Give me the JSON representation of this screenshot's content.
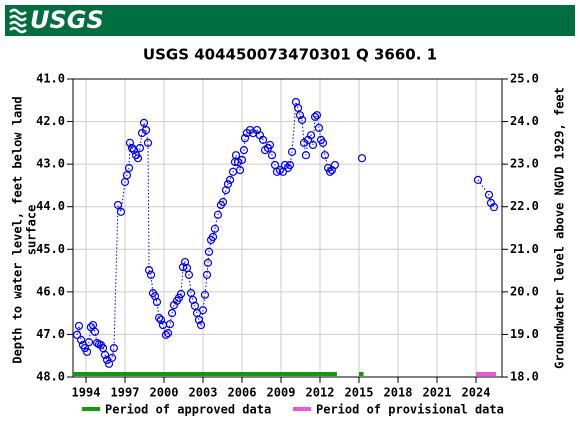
{
  "chart_data": {
    "type": "scatter",
    "logo": "USGS",
    "title": "USGS 404450073470301 Q  3660. 1",
    "ylabel": [
      "Depth to water level, feet below land",
      "surface"
    ],
    "y2label": "Groundwater level above NGVD 1929, feet",
    "xlim": [
      1993,
      2026
    ],
    "xticks": [
      1994,
      1997,
      2000,
      2003,
      2006,
      2009,
      2012,
      2015,
      2018,
      2021,
      2024
    ],
    "ylim": [
      48,
      41
    ],
    "yticks": [
      {
        "value": 41,
        "label": "41.0"
      },
      {
        "value": 42,
        "label": "42.0"
      },
      {
        "value": 43,
        "label": "43.0"
      },
      {
        "value": 44,
        "label": "44.0"
      },
      {
        "value": 45,
        "label": "45.0"
      },
      {
        "value": 46,
        "label": "46.0"
      },
      {
        "value": 47,
        "label": "47.0"
      },
      {
        "value": 48,
        "label": "48.0"
      }
    ],
    "y2lim": [
      18,
      25
    ],
    "y2ticks": [
      {
        "value": 25,
        "label": "25.0"
      },
      {
        "value": 24,
        "label": "24.0"
      },
      {
        "value": 23,
        "label": "23.0"
      },
      {
        "value": 22,
        "label": "22.0"
      },
      {
        "value": 21,
        "label": "21.0"
      },
      {
        "value": 20,
        "label": "20.0"
      },
      {
        "value": 19,
        "label": "19.0"
      },
      {
        "value": 18,
        "label": "18.0"
      }
    ],
    "grid": true,
    "series": [
      {
        "color": "#0000ff",
        "x": [
          1993.31,
          1993.46,
          1993.62,
          1993.77,
          1993.92,
          1994.08,
          1994.23,
          1994.38,
          1994.54,
          1994.69,
          1994.85,
          1995.0,
          1995.15,
          1995.31,
          1995.46,
          1995.62,
          1995.77,
          1996.0,
          1996.15,
          1996.46,
          1996.69,
          1997.0,
          1997.15,
          1997.31,
          1997.38,
          1997.54,
          1997.69,
          1997.85,
          1998.0,
          1998.15,
          1998.31,
          1998.46,
          1998.62,
          1998.77,
          1998.85,
          1999.0,
          1999.15,
          1999.31,
          1999.46,
          1999.62,
          1999.77,
          1999.92,
          2000.15,
          2000.31,
          2000.46,
          2000.62,
          2000.77,
          2001.0,
          2001.15,
          2001.31,
          2001.46,
          2001.62,
          2001.77,
          2001.92,
          2002.08,
          2002.23,
          2002.38,
          2002.54,
          2002.69,
          2002.85,
          2003.0,
          2003.15,
          2003.31,
          2003.38,
          2003.46,
          2003.62,
          2003.77,
          2003.92,
          2004.15,
          2004.38,
          2004.54,
          2004.77,
          2004.92,
          2005.08,
          2005.31,
          2005.46,
          2005.54,
          2005.69,
          2005.85,
          2006.0,
          2006.15,
          2006.23,
          2006.38,
          2006.62,
          2006.85,
          2007.15,
          2007.38,
          2007.62,
          2007.77,
          2008.0,
          2008.15,
          2008.31,
          2008.54,
          2008.69,
          2008.92,
          2009.15,
          2009.31,
          2009.54,
          2009.69,
          2009.85,
          2010.15,
          2010.31,
          2010.46,
          2010.62,
          2010.77,
          2010.92,
          2011.08,
          2011.31,
          2011.46,
          2011.62,
          2011.77,
          2011.92,
          2012.08,
          2012.23,
          2012.38,
          2012.62,
          2012.77,
          2012.92,
          2013.15,
          null,
          2015.23,
          null,
          2024.15,
          2025.0,
          2025.15,
          2025.38
        ],
        "values": [
          47.01,
          46.8,
          47.13,
          47.25,
          47.32,
          47.41,
          47.18,
          46.83,
          46.78,
          46.94,
          47.2,
          47.23,
          47.25,
          47.32,
          47.48,
          47.6,
          47.69,
          47.55,
          47.32,
          43.96,
          44.12,
          43.42,
          43.26,
          43.09,
          42.5,
          42.62,
          42.67,
          42.79,
          42.86,
          42.62,
          42.27,
          42.03,
          42.2,
          42.5,
          45.49,
          45.6,
          46.03,
          46.1,
          46.24,
          46.61,
          46.66,
          46.78,
          47.01,
          46.97,
          46.76,
          46.5,
          46.31,
          46.21,
          46.14,
          46.05,
          45.42,
          45.3,
          45.44,
          45.6,
          46.03,
          46.19,
          46.33,
          46.5,
          46.66,
          46.78,
          46.43,
          46.07,
          45.6,
          45.32,
          45.06,
          44.78,
          44.71,
          44.52,
          44.19,
          43.96,
          43.89,
          43.61,
          43.47,
          43.37,
          43.18,
          42.95,
          42.79,
          42.95,
          43.14,
          42.9,
          42.67,
          42.39,
          42.27,
          42.2,
          42.27,
          42.2,
          42.32,
          42.43,
          42.67,
          42.62,
          42.55,
          42.79,
          43.02,
          43.18,
          43.14,
          43.18,
          43.02,
          43.09,
          43.02,
          42.71,
          41.54,
          41.68,
          41.85,
          41.96,
          42.5,
          42.79,
          42.43,
          42.32,
          42.55,
          41.89,
          41.85,
          42.15,
          42.43,
          42.5,
          42.79,
          43.09,
          43.18,
          43.14,
          43.02,
          null,
          42.86,
          null,
          43.37,
          43.72,
          43.91,
          44.01
        ]
      }
    ],
    "periods": [
      {
        "name": "Period of approved data",
        "color": "#119911",
        "ranges": [
          [
            1993.0,
            2013.3
          ],
          [
            2015.0,
            2015.35
          ]
        ]
      },
      {
        "name": "Period of provisional data",
        "color": "#ee55dd",
        "ranges": [
          [
            2024.0,
            2025.55
          ]
        ]
      }
    ]
  }
}
